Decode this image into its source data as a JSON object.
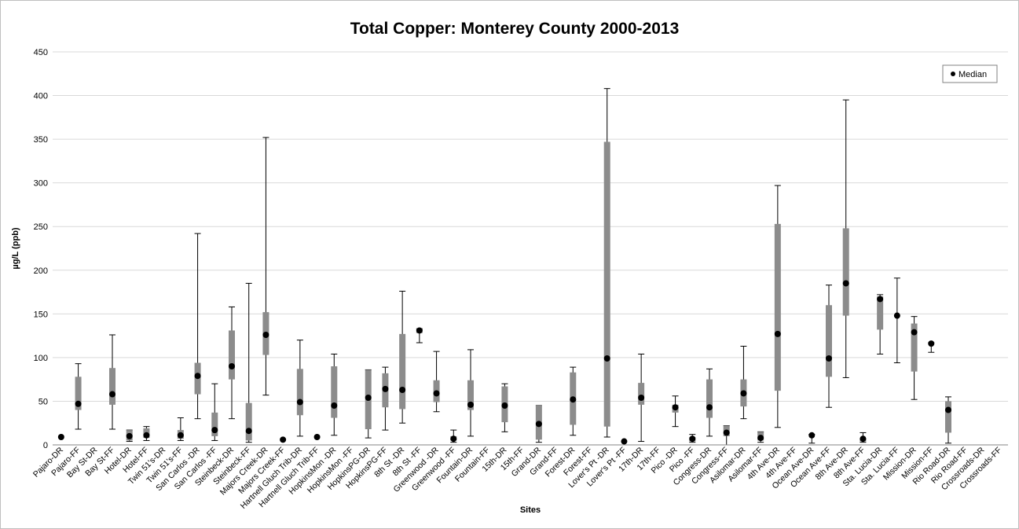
{
  "chart_data": {
    "type": "boxplot",
    "title": "Total Copper: Monterey County 2000-2013",
    "xlabel": "Sites",
    "ylabel": "µg/L (ppb)",
    "ylim": [
      0,
      450
    ],
    "yticks": [
      0,
      50,
      100,
      150,
      200,
      250,
      300,
      350,
      400,
      450
    ],
    "grid": true,
    "legend": {
      "label": "Median",
      "placement": "top-right"
    },
    "colors": {
      "box": "#8c8c8c",
      "median": "#000000",
      "grid": "#d9d9d9",
      "whisker": "#000000"
    },
    "categories": [
      "Pajaro-DR",
      "Pajaro-FF",
      "Bay St-DR",
      "Bay St-FF",
      "Hotel-DR",
      "Hotel-FF",
      "Twin 51's-DR",
      "Twin 51's-FF",
      "San Carlos -DR",
      "San Carlos -FF",
      "Steinbeck-DR",
      "Steinbeck-FF",
      "Majors Creek-DR",
      "Majors Creek-FF",
      "Hartnell Gluch Trib-DR",
      "Hartnell Gluch Trib-FF",
      "HopkinsMon -DR",
      "HopkinsMon -FF",
      "HopkinsPG-DR",
      "HopkinsPG-FF",
      "8th St -DR",
      "8th St -FF",
      "Greenwood -DR",
      "Greenwood -FF",
      "Fountain-DR",
      "Fountain-FF",
      "15th-DR",
      "15th-FF",
      "Grand-DR",
      "Grand-FF",
      "Forest-DR",
      "Forest-FF",
      "Lover's Pt -DR",
      "Lover's Pt -FF",
      "17th-DR",
      "17th-FF",
      "Pico -DR",
      "Pico -FF",
      "Congress-DR",
      "Congress-FF",
      "Asilomar-DR",
      "Asilomar-FF",
      "4th Ave-DR",
      "4th Ave-FF",
      "Ocean Ave-DR",
      "Ocean Ave-FF",
      "8th Ave-DR",
      "8th Ave-FF",
      "Sta. Lucia-DR",
      "Sta. Lucia-FF",
      "Mission-DR",
      "Mission-FF",
      "Rio Road-DR",
      "Rio Road-FF",
      "Crossroads-DR",
      "Crossroads-FF"
    ],
    "series": [
      {
        "slot": 0,
        "min": null,
        "q1": null,
        "q3": null,
        "max": null,
        "median": 9
      },
      {
        "slot": 1,
        "min": 18,
        "q1": 40,
        "q3": 78,
        "max": 93,
        "median": 47
      },
      {
        "slot": 3,
        "min": 18,
        "q1": 46,
        "q3": 88,
        "max": 126,
        "median": 58
      },
      {
        "slot": 4,
        "min": 4,
        "q1": 5,
        "q3": 17,
        "max": 17,
        "median": 10
      },
      {
        "slot": 5,
        "min": 5,
        "q1": 8,
        "q3": 19,
        "max": 21,
        "median": 11
      },
      {
        "slot": 7,
        "min": 5,
        "q1": 7,
        "q3": 17,
        "max": 31,
        "median": 11
      },
      {
        "slot": 8,
        "min": 30,
        "q1": 58,
        "q3": 94,
        "max": 242,
        "median": 79
      },
      {
        "slot": 9,
        "min": 5,
        "q1": 10,
        "q3": 37,
        "max": 70,
        "median": 17
      },
      {
        "slot": 10,
        "min": 30,
        "q1": 75,
        "q3": 131,
        "max": 158,
        "median": 90
      },
      {
        "slot": 11,
        "min": 3,
        "q1": 5,
        "q3": 48,
        "max": 185,
        "median": 16
      },
      {
        "slot": 12,
        "min": 57,
        "q1": 103,
        "q3": 152,
        "max": 352,
        "median": 126
      },
      {
        "slot": 13,
        "min": null,
        "q1": null,
        "q3": null,
        "max": null,
        "median": 6
      },
      {
        "slot": 14,
        "min": 10,
        "q1": 34,
        "q3": 87,
        "max": 120,
        "median": 49
      },
      {
        "slot": 15,
        "min": null,
        "q1": null,
        "q3": null,
        "max": null,
        "median": 9
      },
      {
        "slot": 16,
        "min": 11,
        "q1": 31,
        "q3": 90,
        "max": 104,
        "median": 45
      },
      {
        "slot": 18,
        "min": 8,
        "q1": 18,
        "q3": 86,
        "max": 86,
        "median": 54
      },
      {
        "slot": 19,
        "min": 17,
        "q1": 43,
        "q3": 82,
        "max": 89,
        "median": 64
      },
      {
        "slot": 20,
        "min": 25,
        "q1": 41,
        "q3": 127,
        "max": 176,
        "median": 63
      },
      {
        "slot": 21,
        "min": 117,
        "q1": 128,
        "q3": 133,
        "max": 133,
        "median": 131
      },
      {
        "slot": 22,
        "min": 38,
        "q1": 49,
        "q3": 74,
        "max": 107,
        "median": 59
      },
      {
        "slot": 23,
        "min": 3,
        "q1": 5,
        "q3": 10,
        "max": 17,
        "median": 7
      },
      {
        "slot": 24,
        "min": 10,
        "q1": 40,
        "q3": 74,
        "max": 109,
        "median": 46
      },
      {
        "slot": 26,
        "min": 15,
        "q1": 26,
        "q3": 67,
        "max": 70,
        "median": 45
      },
      {
        "slot": 28,
        "min": 3,
        "q1": 6,
        "q3": 45,
        "max": 45,
        "median": 24
      },
      {
        "slot": 30,
        "min": 11,
        "q1": 23,
        "q3": 83,
        "max": 89,
        "median": 52
      },
      {
        "slot": 32,
        "min": 9,
        "q1": 21,
        "q3": 347,
        "max": 408,
        "median": 99
      },
      {
        "slot": 33,
        "min": null,
        "q1": null,
        "q3": null,
        "max": null,
        "median": 4
      },
      {
        "slot": 34,
        "min": 4,
        "q1": 46,
        "q3": 71,
        "max": 104,
        "median": 54
      },
      {
        "slot": 36,
        "min": 21,
        "q1": 37,
        "q3": 46,
        "max": 56,
        "median": 43
      },
      {
        "slot": 37,
        "min": 3,
        "q1": 4,
        "q3": 9,
        "max": 12,
        "median": 7
      },
      {
        "slot": 38,
        "min": 10,
        "q1": 31,
        "q3": 75,
        "max": 87,
        "median": 43
      },
      {
        "slot": 39,
        "min": 0,
        "q1": 10,
        "q3": 22,
        "max": 22,
        "median": 14
      },
      {
        "slot": 40,
        "min": 30,
        "q1": 44,
        "q3": 75,
        "max": 113,
        "median": 59
      },
      {
        "slot": 41,
        "min": 3,
        "q1": 5,
        "q3": 15,
        "max": 15,
        "median": 8
      },
      {
        "slot": 42,
        "min": 20,
        "q1": 62,
        "q3": 253,
        "max": 297,
        "median": 127
      },
      {
        "slot": 44,
        "min": 2,
        "q1": null,
        "q3": null,
        "max": 12,
        "median": 11
      },
      {
        "slot": 45,
        "min": 43,
        "q1": 78,
        "q3": 160,
        "max": 183,
        "median": 99
      },
      {
        "slot": 46,
        "min": 77,
        "q1": 148,
        "q3": 248,
        "max": 395,
        "median": 185
      },
      {
        "slot": 47,
        "min": 3,
        "q1": 4,
        "q3": 8,
        "max": 14,
        "median": 7
      },
      {
        "slot": 48,
        "min": 104,
        "q1": 132,
        "q3": 170,
        "max": 172,
        "median": 167
      },
      {
        "slot": 49,
        "min": 94,
        "q1": null,
        "q3": null,
        "max": 191,
        "median": 148
      },
      {
        "slot": 50,
        "min": 52,
        "q1": 84,
        "q3": 139,
        "max": 147,
        "median": 129
      },
      {
        "slot": 51,
        "min": 106,
        "q1": null,
        "q3": null,
        "max": 117,
        "median": 116
      },
      {
        "slot": 52,
        "min": 2,
        "q1": 14,
        "q3": 50,
        "max": 55,
        "median": 40
      }
    ]
  }
}
